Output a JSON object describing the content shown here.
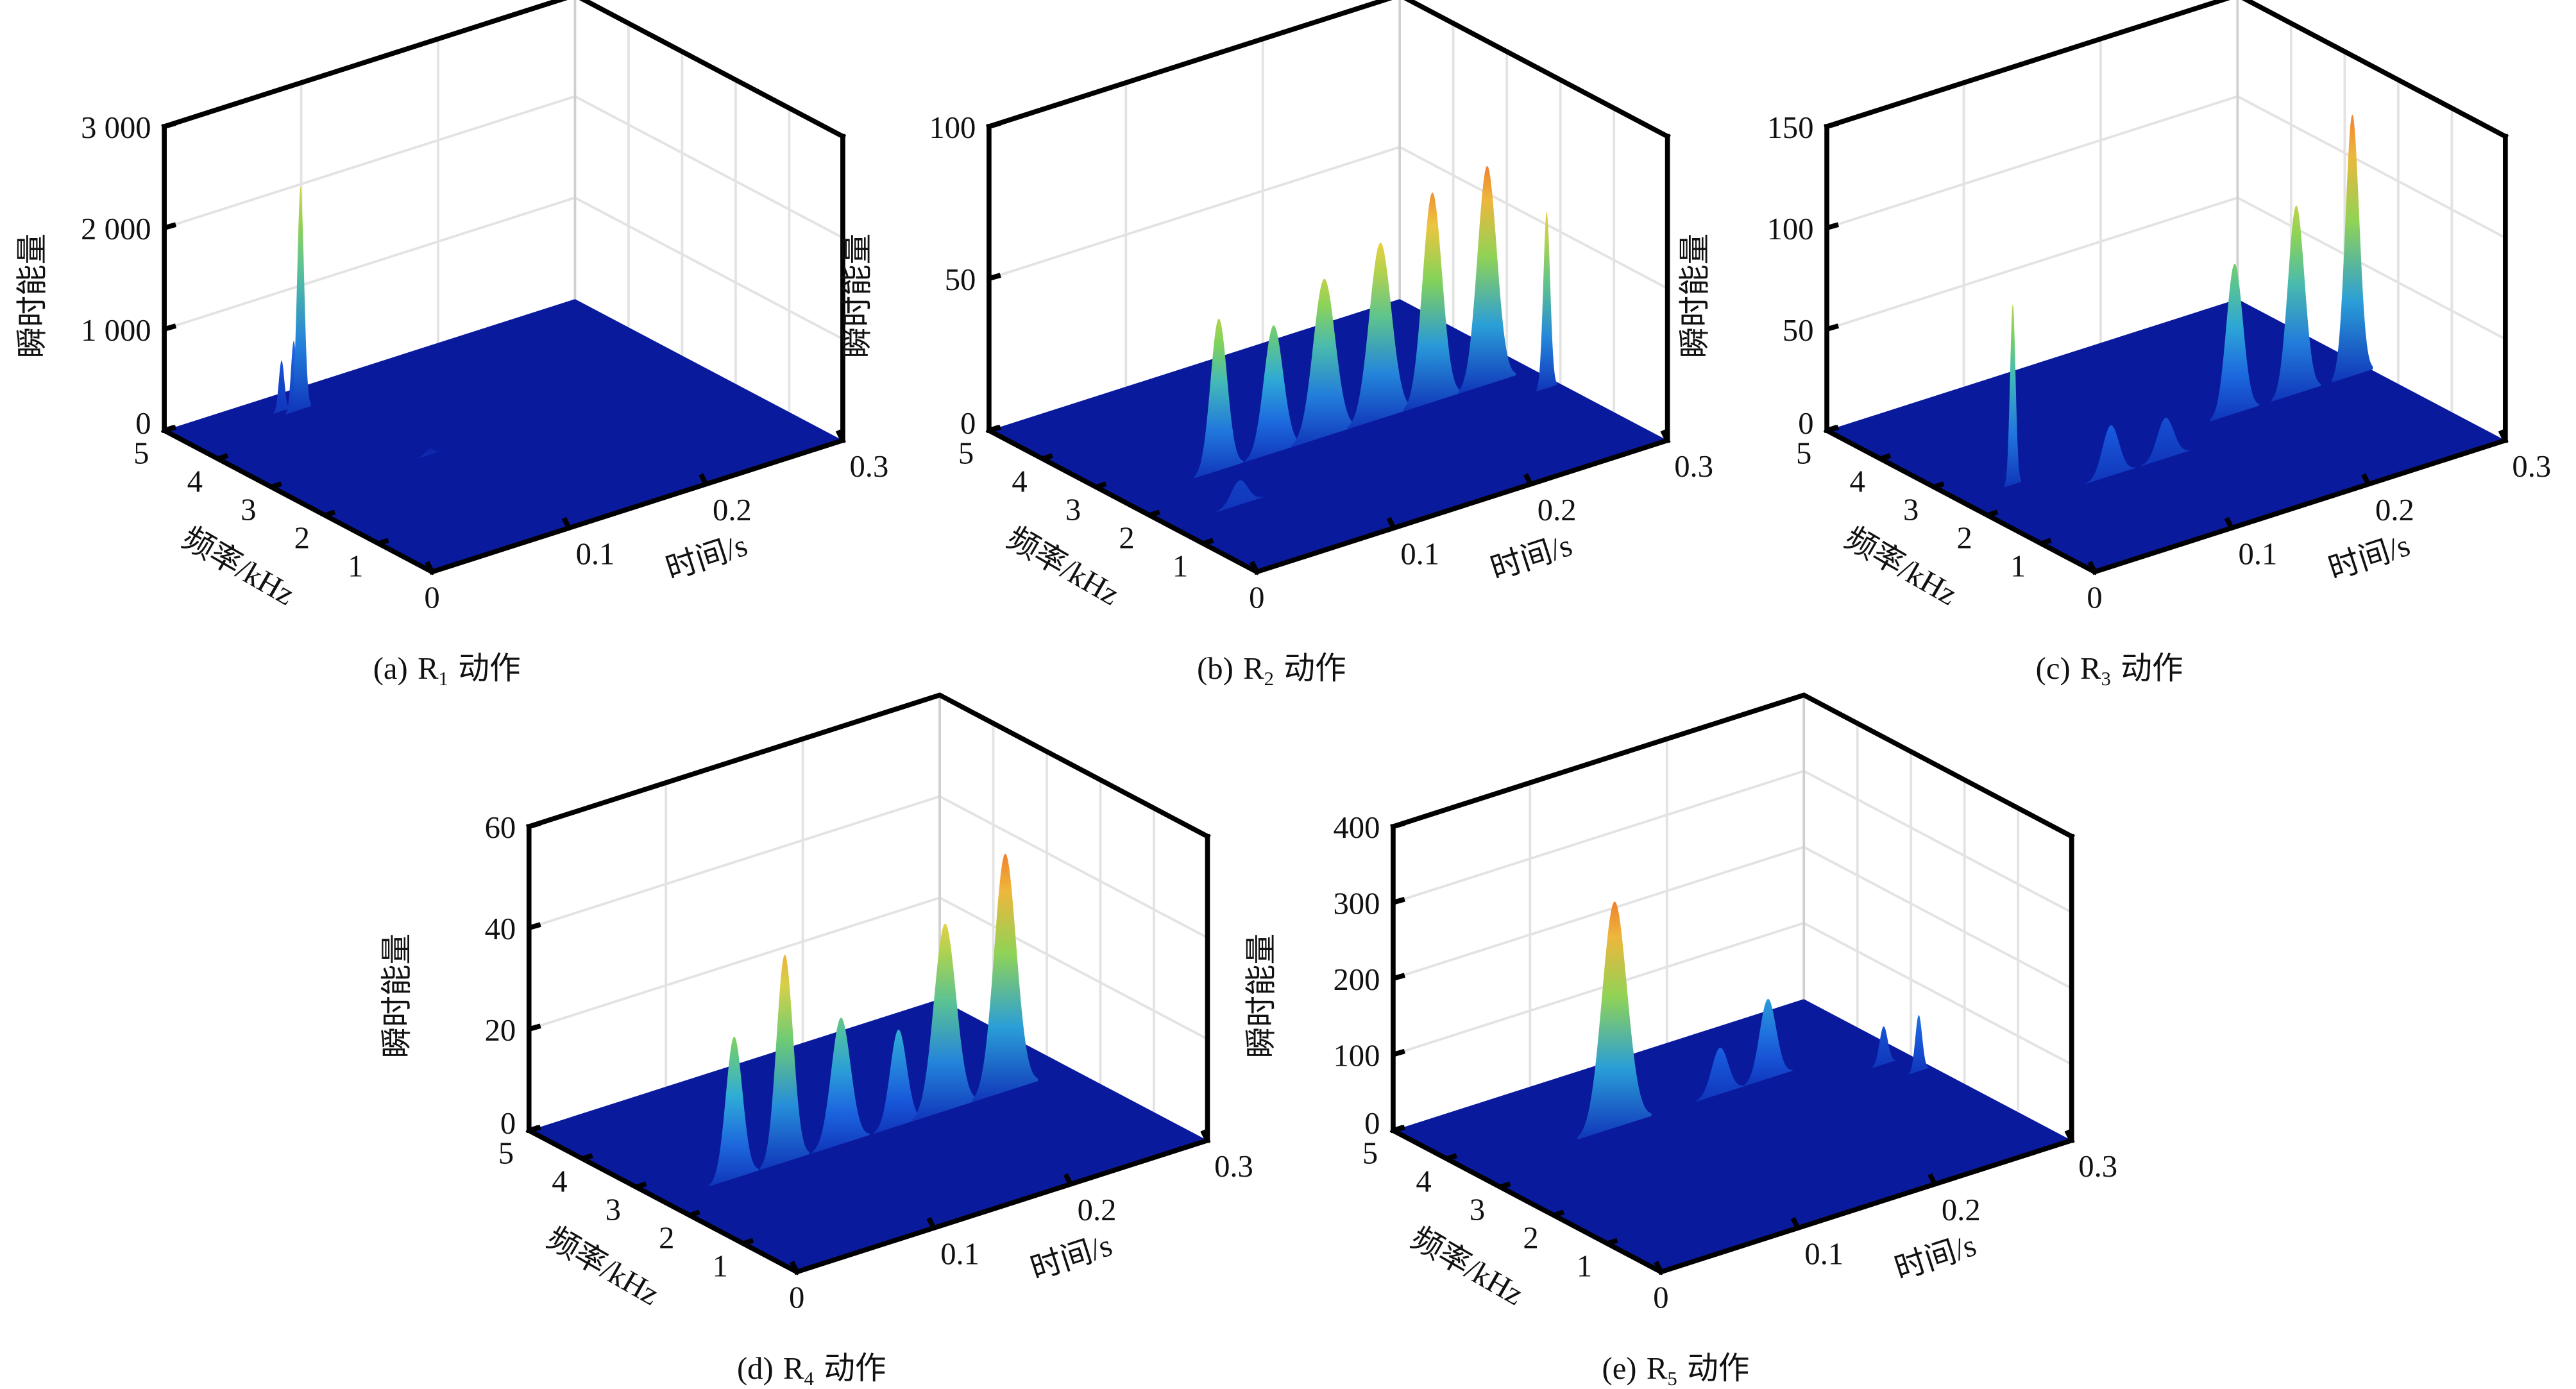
{
  "colors": {
    "floor": "#0a1a9c",
    "grid": "#e3e3e3",
    "axis": "#000000",
    "colormap": [
      "#0a1aa0",
      "#1a5ee0",
      "#2fb0d6",
      "#7fd35a",
      "#ecd042",
      "#f0802e"
    ]
  },
  "chart_data": [
    {
      "type": "surface",
      "caption": {
        "label": "(a)",
        "var": "R",
        "sub": "1",
        "suffix": "动作"
      },
      "xlabel": "时间/s",
      "ylabel": "频率/kHz",
      "zlabel": "瞬时能量",
      "xlim": [
        0,
        0.3
      ],
      "ylim": [
        0,
        5
      ],
      "zlim": [
        0,
        3000
      ],
      "x_ticks": [
        "0",
        "0.1",
        "0.2",
        "0.3"
      ],
      "y_ticks": [
        "1",
        "2",
        "3",
        "4",
        "5"
      ],
      "z_ticks": [
        {
          "v": 0,
          "label": "0"
        },
        {
          "v": 1000,
          "label": "1 000"
        },
        {
          "v": 2000,
          "label": "2 000"
        },
        {
          "v": 3000,
          "label": "3 000"
        }
      ],
      "peaks": [
        {
          "t": 0.07,
          "f": 4.6,
          "z": 500,
          "w": 0.002
        },
        {
          "t": 0.075,
          "f": 4.5,
          "z": 700,
          "w": 0.002
        },
        {
          "t": 0.08,
          "f": 4.5,
          "z": 2200,
          "w": 0.0025
        },
        {
          "t": 0.1,
          "f": 2.6,
          "z": 60,
          "w": 0.003
        }
      ]
    },
    {
      "type": "surface",
      "caption": {
        "label": "(b)",
        "var": "R",
        "sub": "2",
        "suffix": "动作"
      },
      "xlabel": "时间/s",
      "ylabel": "频率/kHz",
      "zlabel": "瞬时能量",
      "xlim": [
        0,
        0.3
      ],
      "ylim": [
        0,
        5
      ],
      "zlim": [
        0,
        100
      ],
      "x_ticks": [
        "0",
        "0.1",
        "0.2",
        "0.3"
      ],
      "y_ticks": [
        "1",
        "2",
        "3",
        "4",
        "5"
      ],
      "z_ticks": [
        {
          "v": 0,
          "label": "0"
        },
        {
          "v": 50,
          "label": "50"
        },
        {
          "v": 100,
          "label": "100"
        }
      ],
      "peaks": [
        {
          "t": 0.05,
          "f": 1.6,
          "z": 8,
          "w": 0.006
        },
        {
          "t": 0.07,
          "f": 2.5,
          "z": 50,
          "w": 0.006
        },
        {
          "t": 0.11,
          "f": 2.5,
          "z": 42,
          "w": 0.007
        },
        {
          "t": 0.147,
          "f": 2.5,
          "z": 52,
          "w": 0.008
        },
        {
          "t": 0.188,
          "f": 2.5,
          "z": 58,
          "w": 0.008
        },
        {
          "t": 0.226,
          "f": 2.5,
          "z": 69,
          "w": 0.007
        },
        {
          "t": 0.266,
          "f": 2.5,
          "z": 72,
          "w": 0.007
        },
        {
          "t": 0.29,
          "f": 2.0,
          "z": 58,
          "w": 0.0025
        }
      ]
    },
    {
      "type": "surface",
      "caption": {
        "label": "(c)",
        "var": "R",
        "sub": "3",
        "suffix": "动作"
      },
      "xlabel": "时间/s",
      "ylabel": "频率/kHz",
      "zlabel": "瞬时能量",
      "xlim": [
        0,
        0.3
      ],
      "ylim": [
        0,
        5
      ],
      "zlim": [
        0,
        150
      ],
      "x_ticks": [
        "0",
        "0.1",
        "0.2",
        "0.3"
      ],
      "y_ticks": [
        "1",
        "2",
        "3",
        "4",
        "5"
      ],
      "z_ticks": [
        {
          "v": 0,
          "label": "0"
        },
        {
          "v": 50,
          "label": "50"
        },
        {
          "v": 100,
          "label": "100"
        },
        {
          "v": 150,
          "label": "150"
        }
      ],
      "peaks": [
        {
          "t": 0.038,
          "f": 2.5,
          "z": 89,
          "w": 0.002
        },
        {
          "t": 0.09,
          "f": 2.0,
          "z": 25,
          "w": 0.006
        },
        {
          "t": 0.13,
          "f": 2.0,
          "z": 20,
          "w": 0.006
        },
        {
          "t": 0.2,
          "f": 2.5,
          "z": 74,
          "w": 0.006
        },
        {
          "t": 0.245,
          "f": 2.5,
          "z": 93,
          "w": 0.006
        },
        {
          "t": 0.286,
          "f": 2.5,
          "z": 129,
          "w": 0.005
        }
      ]
    },
    {
      "type": "surface",
      "caption": {
        "label": "(d)",
        "var": "R",
        "sub": "4",
        "suffix": "动作"
      },
      "xlabel": "时间/s",
      "ylabel": "频率/kHz",
      "zlabel": "瞬时能量",
      "xlim": [
        0,
        0.3
      ],
      "ylim": [
        0,
        5
      ],
      "zlim": [
        0,
        60
      ],
      "x_ticks": [
        "0",
        "0.1",
        "0.2",
        "0.3"
      ],
      "y_ticks": [
        "1",
        "2",
        "3",
        "4",
        "5"
      ],
      "z_ticks": [
        {
          "v": 0,
          "label": "0"
        },
        {
          "v": 20,
          "label": "20"
        },
        {
          "v": 40,
          "label": "40"
        },
        {
          "v": 60,
          "label": "60"
        }
      ],
      "peaks": [
        {
          "t": 0.052,
          "f": 2.5,
          "z": 28,
          "w": 0.006
        },
        {
          "t": 0.089,
          "f": 2.5,
          "z": 41,
          "w": 0.006
        },
        {
          "t": 0.13,
          "f": 2.5,
          "z": 25,
          "w": 0.007
        },
        {
          "t": 0.172,
          "f": 2.5,
          "z": 19,
          "w": 0.006
        },
        {
          "t": 0.206,
          "f": 2.5,
          "z": 37,
          "w": 0.008
        },
        {
          "t": 0.25,
          "f": 2.5,
          "z": 47,
          "w": 0.008
        }
      ]
    },
    {
      "type": "surface",
      "caption": {
        "label": "(e)",
        "var": "R",
        "sub": "5",
        "suffix": "动作"
      },
      "xlabel": "时间/s",
      "ylabel": "频率/kHz",
      "zlabel": "瞬时能量",
      "xlim": [
        0,
        0.3
      ],
      "ylim": [
        0,
        5
      ],
      "zlim": [
        0,
        400
      ],
      "x_ticks": [
        "0",
        "0.1",
        "0.2",
        "0.3"
      ],
      "y_ticks": [
        "1",
        "2",
        "3",
        "4",
        "5"
      ],
      "z_ticks": [
        {
          "v": 0,
          "label": "0"
        },
        {
          "v": 100,
          "label": "100"
        },
        {
          "v": 200,
          "label": "200"
        },
        {
          "v": 300,
          "label": "300"
        },
        {
          "v": 400,
          "label": "400"
        }
      ],
      "peaks": [
        {
          "t": 0.103,
          "f": 3.5,
          "z": 298,
          "w": 0.009
        },
        {
          "t": 0.18,
          "f": 3.5,
          "z": 61,
          "w": 0.006
        },
        {
          "t": 0.215,
          "f": 3.5,
          "z": 105,
          "w": 0.006
        },
        {
          "t": 0.28,
          "f": 3.0,
          "z": 50,
          "w": 0.003
        },
        {
          "t": 0.29,
          "f": 2.6,
          "z": 74,
          "w": 0.0025
        }
      ]
    }
  ]
}
